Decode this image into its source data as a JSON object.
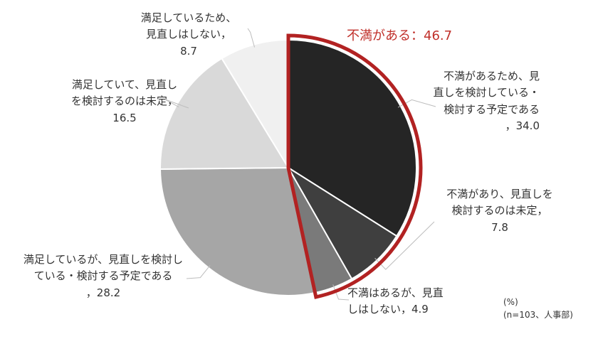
{
  "chart_data": {
    "type": "pie",
    "unit": "(%)",
    "note": "(n=103、人事部)",
    "highlight": {
      "label": "不満がある：46.7",
      "color": "#b22222"
    },
    "slices": [
      {
        "lines": [
          "不満があるため、見",
          "直しを検討している・",
          "検討する予定である",
          "，34.0"
        ],
        "value": 34.0,
        "color": "#252525"
      },
      {
        "lines": [
          "不満があり、見直しを",
          "検討するのは未定，",
          "7.8"
        ],
        "value": 7.8,
        "color": "#3f3f3f"
      },
      {
        "lines": [
          "不満はあるが、見直",
          "しはしない，4.9"
        ],
        "value": 4.9,
        "color": "#7a7a7a"
      },
      {
        "lines": [
          "満足しているが、見直しを検討し",
          "ている・検討する予定である",
          "，28.2"
        ],
        "value": 28.2,
        "color": "#a6a6a6"
      },
      {
        "lines": [
          "満足していて、見直し",
          "を検討するのは未定，",
          "16.5"
        ],
        "value": 16.5,
        "color": "#d9d9d9"
      },
      {
        "lines": [
          "満足しているため、",
          "見直しはしない，",
          "8.7"
        ],
        "value": 8.7,
        "color": "#f0f0f0"
      }
    ]
  }
}
